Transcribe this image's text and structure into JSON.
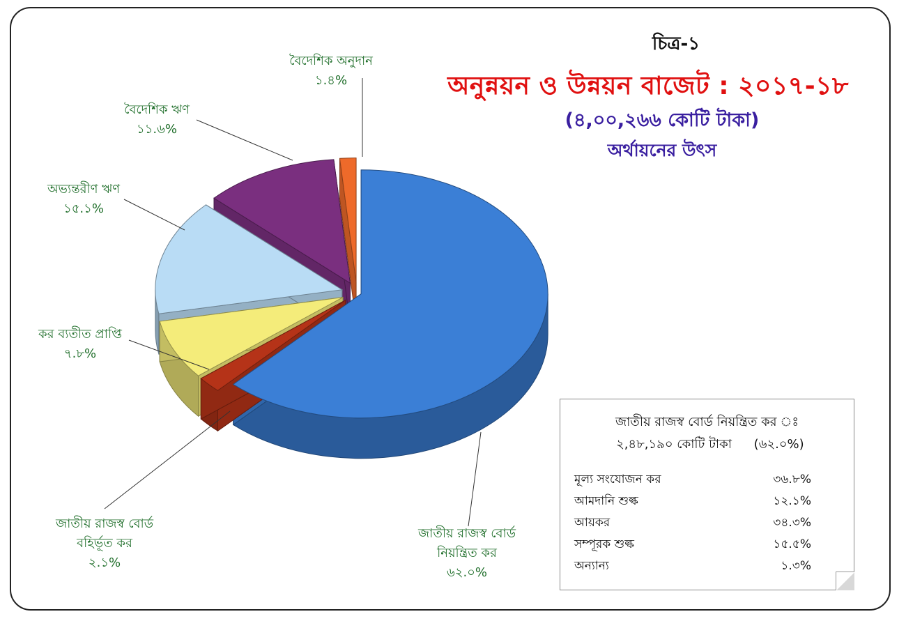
{
  "header": {
    "caption": "চিত্র-১",
    "title": "অনুন্নয়ন ও উন্নয়ন বাজেট : ২০১৭-১৮",
    "subtitle": "(৪,০০,২৬৬ কোটি টাকা)",
    "subtitle2": "অর্থায়নের উৎস"
  },
  "chart_data": {
    "type": "pie",
    "title": "অনুন্নয়ন ও উন্নয়ন বাজেট : ২০১৭-১৮",
    "subtitle": "(৪,০০,২৬৬ কোটি টাকা)",
    "slices": [
      {
        "label_lines": [
          "জাতীয় রাজস্ব বোর্ড",
          "নিয়ন্ত্রিত কর"
        ],
        "value": 62.0,
        "pct_text": "৬২.০%",
        "color": "#3b7fd6"
      },
      {
        "label_lines": [
          "জাতীয় রাজস্ব বোর্ড",
          "বহির্ভূত কর"
        ],
        "value": 2.1,
        "pct_text": "২.১%",
        "color": "#b53318"
      },
      {
        "label_lines": [
          "কর ব্যতীত প্রাপ্তি"
        ],
        "value": 7.8,
        "pct_text": "৭.৮%",
        "color": "#f4ec7a"
      },
      {
        "label_lines": [
          "অভ্যন্তরীণ ঋণ"
        ],
        "value": 15.1,
        "pct_text": "১৫.১%",
        "color": "#b9dcf5"
      },
      {
        "label_lines": [
          "বৈদেশিক ঋণ"
        ],
        "value": 11.6,
        "pct_text": "১১.৬%",
        "color": "#7a2f7f"
      },
      {
        "label_lines": [
          "বৈদেশিক অনুদান"
        ],
        "value": 1.4,
        "pct_text": "১.৪%",
        "color": "#ee6a2a"
      }
    ]
  },
  "info_box": {
    "heading": "জাতীয় রাজস্ব বোর্ড নিয়ন্ত্রিত কর ঃ",
    "total": "২,৪৮,১৯০ কোটি টাকা",
    "total_pct": "(৬২.০%)",
    "rows": [
      {
        "label": "মূল্য সংযোজন কর",
        "value": "৩৬.৮%"
      },
      {
        "label": "আমদানি শুল্ক",
        "value": "১২.১%"
      },
      {
        "label": "আয়কর",
        "value": "৩৪.৩%"
      },
      {
        "label": "সম্পূরক শুল্ক",
        "value": "১৫.৫%"
      },
      {
        "label": "অন্যান্য",
        "value": "১.৩%"
      }
    ]
  }
}
